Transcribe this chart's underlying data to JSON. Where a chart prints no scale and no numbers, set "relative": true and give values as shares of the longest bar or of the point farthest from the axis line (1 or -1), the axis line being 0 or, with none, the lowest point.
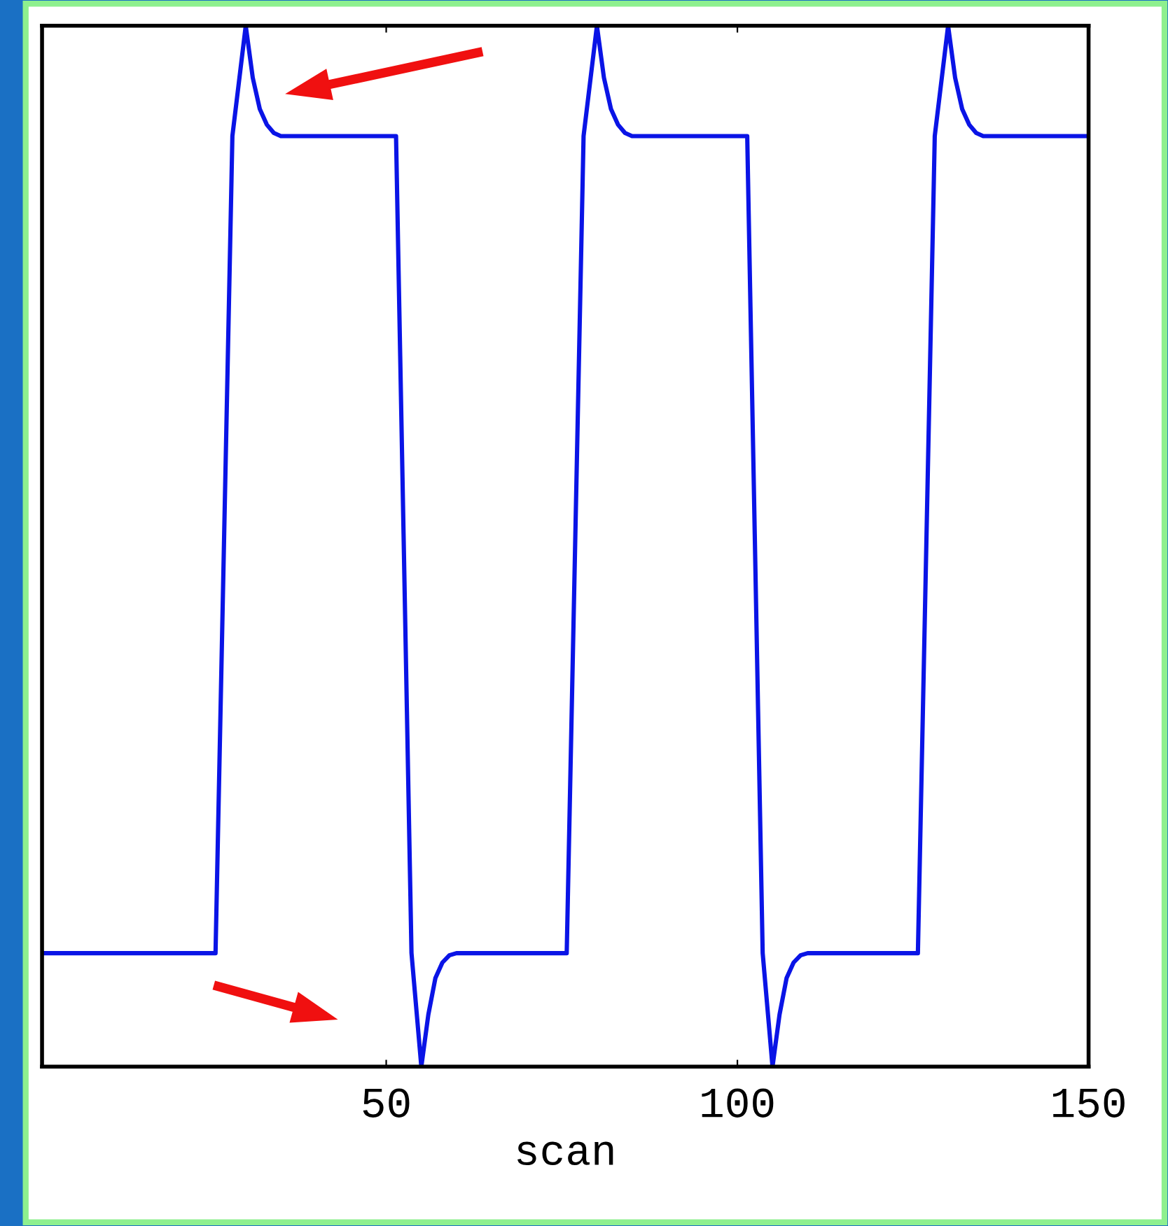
{
  "chart_data": {
    "type": "line",
    "xlabel": "scan",
    "relative": true,
    "xlim": [
      1,
      150
    ],
    "xticks": [
      50,
      100,
      150
    ],
    "marker": "none",
    "line_style": "solid",
    "series": [
      {
        "color": "#0a14e6",
        "x": [
          1,
          25.7,
          28.1,
          30,
          31,
          32,
          33,
          34,
          35,
          51.4,
          53.6,
          55,
          56,
          57,
          58,
          59,
          60,
          75.7,
          78.1,
          80,
          81,
          82,
          83,
          84,
          85,
          101.4,
          103.6,
          105,
          106,
          107,
          108,
          109,
          110,
          125.7,
          128.1,
          130,
          131,
          132,
          133,
          134,
          135,
          150
        ],
        "values": [
          0.109,
          0.109,
          0.894,
          1,
          0.95,
          0.92,
          0.905,
          0.897,
          0.894,
          0.894,
          0.109,
          0,
          0.05,
          0.085,
          0.1,
          0.107,
          0.109,
          0.109,
          0.894,
          1,
          0.95,
          0.92,
          0.905,
          0.897,
          0.894,
          0.894,
          0.109,
          0,
          0.05,
          0.085,
          0.1,
          0.107,
          0.109,
          0.109,
          0.894,
          1,
          0.95,
          0.92,
          0.905,
          0.897,
          0.894,
          0.894
        ]
      }
    ]
  }
}
